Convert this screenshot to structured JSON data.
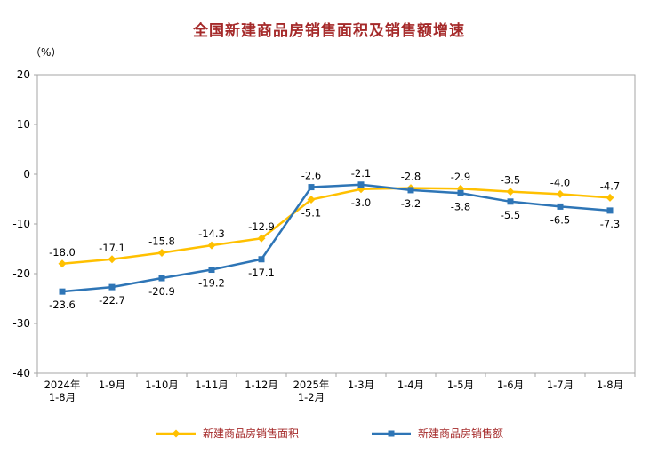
{
  "title": "全国新建商品房销售面积及销售额增速",
  "unit_label": "（%）",
  "colors": {
    "title": "#A52A2A",
    "axis": "#A6A6A6",
    "axis_text": "#000000"
  },
  "chart_data": {
    "type": "line",
    "categories": [
      [
        "2024年",
        "1-8月"
      ],
      [
        "1-9月"
      ],
      [
        "1-10月"
      ],
      [
        "1-11月"
      ],
      [
        "1-12月"
      ],
      [
        "2025年",
        "1-2月"
      ],
      [
        "1-3月"
      ],
      [
        "1-4月"
      ],
      [
        "1-5月"
      ],
      [
        "1-6月"
      ],
      [
        "1-7月"
      ],
      [
        "1-8月"
      ]
    ],
    "series": [
      {
        "name": "新建商品房销售面积",
        "color": "#FFC000",
        "marker": "diamond",
        "values": [
          -18.0,
          -17.1,
          -15.8,
          -14.3,
          -12.9,
          -5.1,
          -3.0,
          -2.8,
          -2.9,
          -3.5,
          -4.0,
          -4.7
        ]
      },
      {
        "name": "新建商品房销售额",
        "color": "#2E75B6",
        "marker": "square",
        "values": [
          -23.6,
          -22.7,
          -20.9,
          -19.2,
          -17.1,
          -2.6,
          -2.1,
          -3.2,
          -3.8,
          -5.5,
          -6.5,
          -7.3
        ]
      }
    ],
    "ylim": [
      -40,
      20
    ],
    "ytick_step": 10,
    "ylabel": "（%）",
    "grid": false,
    "legend_position": "bottom",
    "value_labels_shown": true
  }
}
